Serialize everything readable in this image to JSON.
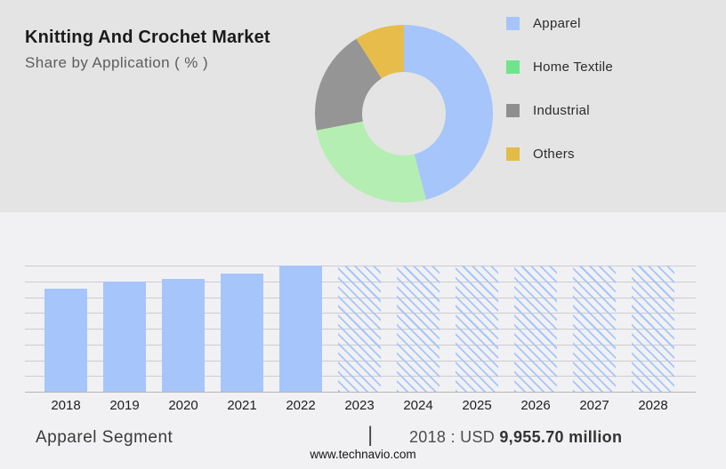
{
  "header": {
    "title": "Knitting And Crochet Market",
    "subtitle": "Share by Application ( % )"
  },
  "chart_data": [
    {
      "type": "pie",
      "donut": true,
      "inner_radius_ratio": 0.47,
      "title": "Share by Application ( % )",
      "labels": [
        "Apparel",
        "Home Textile",
        "Industrial",
        "Others"
      ],
      "values": [
        46,
        26,
        19,
        9
      ],
      "colors": [
        "#a6c5fa",
        "#b5eeb2",
        "#959595",
        "#e7bc4b"
      ],
      "legend_colors": [
        "#a6c5fa",
        "#6ee58b",
        "#8f8f8f",
        "#e2bb49"
      ],
      "legend_position": "right",
      "data_labels_shown": false
    },
    {
      "type": "bar",
      "categories": [
        "2018",
        "2019",
        "2020",
        "2021",
        "2022",
        "2023",
        "2024",
        "2025",
        "2026",
        "2027",
        "2028"
      ],
      "values": [
        9955.7,
        10620,
        10870,
        11380,
        12180,
        null,
        null,
        null,
        null,
        null,
        null
      ],
      "height_fractions": [
        0.817,
        0.871,
        0.892,
        0.935,
        1,
        1,
        1,
        1,
        1,
        1,
        1
      ],
      "forecast_categories": [
        "2023",
        "2024",
        "2025",
        "2026",
        "2027",
        "2028"
      ],
      "historic_style": "solid",
      "forecast_style": "hatched",
      "bar_color": "#a6c5fa",
      "grid": true,
      "gridline_count": 9,
      "ylabel": "",
      "xlabel": "",
      "unit": "USD million",
      "labeled_point": {
        "category": "2018",
        "value": 9955.7
      }
    }
  ],
  "footer": {
    "segment_label": "Apparel Segment",
    "divider": "|",
    "callout_prefix": "2018 : USD",
    "callout_value": "9,955.70 million",
    "website": "www.technavio.com"
  },
  "colors": {
    "top_panel_bg": "#e4e4e4",
    "bottom_panel_bg": "#f1f1f3",
    "gridline": "#cccccf",
    "baseline": "#b5b5b8",
    "title_text": "#1b1b1b",
    "subtitle_text": "#5d5d5d"
  }
}
